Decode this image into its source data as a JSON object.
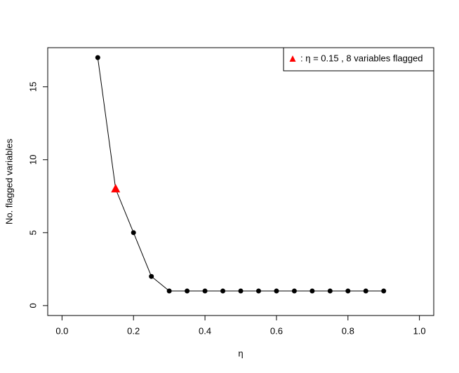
{
  "chart_data": {
    "type": "line",
    "xlabel": "η",
    "ylabel": "No. flagged variables",
    "x": [
      0.1,
      0.15,
      0.2,
      0.25,
      0.3,
      0.35,
      0.4,
      0.45,
      0.5,
      0.55,
      0.6,
      0.65,
      0.7,
      0.75,
      0.8,
      0.85,
      0.9
    ],
    "series": [
      {
        "name": "No. flagged variables",
        "color": "#000000",
        "values": [
          17,
          8,
          5,
          2,
          1,
          1,
          1,
          1,
          1,
          1,
          1,
          1,
          1,
          1,
          1,
          1,
          1
        ]
      }
    ],
    "highlight": {
      "index": 1,
      "color": "#ff0000",
      "marker": "triangle"
    },
    "legend": {
      "label": ": η = 0.15 , 8 variables flagged",
      "position": "top-right"
    },
    "xlim": [
      -0.04,
      1.04
    ],
    "xticks": [
      {
        "value": 0,
        "label": "0.0"
      },
      0.2,
      0.4,
      0.6,
      0.8,
      {
        "value": 1,
        "label": "1.0"
      }
    ],
    "ylim": [
      -0.68,
      17.68
    ],
    "yticks": [
      0,
      5,
      10,
      15
    ],
    "grid": false
  }
}
